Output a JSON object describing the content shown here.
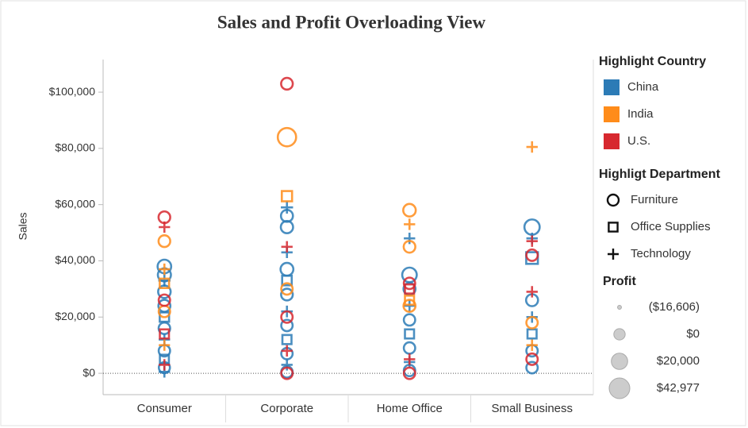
{
  "chart_data": {
    "type": "scatter",
    "title": "Sales and Profit Overloading View",
    "y_label": "Sales",
    "categories": [
      "Consumer",
      "Corporate",
      "Home Office",
      "Small Business"
    ],
    "ylim": [
      -7600,
      111600
    ],
    "yticks": [
      {
        "value": 0,
        "label": "$0"
      },
      {
        "value": 20000,
        "label": "$20,000"
      },
      {
        "value": 40000,
        "label": "$40,000"
      },
      {
        "value": 60000,
        "label": "$60,000"
      },
      {
        "value": 80000,
        "label": "$80,000"
      },
      {
        "value": 100000,
        "label": "$100,000"
      }
    ],
    "zero_line": true,
    "legend_title": "Highlight Country",
    "shape_legend_title": "Highligt Department",
    "departments": [
      "Furniture",
      "Office Supplies",
      "Technology"
    ],
    "department_shapes": [
      "circle",
      "square",
      "plus"
    ],
    "size_legend_title": "Profit",
    "size_legend": [
      {
        "value": -16606,
        "label": "($16,606)"
      },
      {
        "value": 0,
        "label": "$0"
      },
      {
        "value": 20000,
        "label": "$20,000"
      },
      {
        "value": 42977,
        "label": "$42,977"
      }
    ],
    "series": [
      {
        "name": "China",
        "color": "#2c7bb6",
        "x": [
          "Consumer",
          "Consumer",
          "Consumer",
          "Consumer",
          "Consumer",
          "Consumer",
          "Consumer",
          "Consumer",
          "Consumer",
          "Consumer",
          "Consumer",
          "Consumer",
          "Corporate",
          "Corporate",
          "Corporate",
          "Corporate",
          "Corporate",
          "Corporate",
          "Corporate",
          "Corporate",
          "Corporate",
          "Corporate",
          "Corporate",
          "Corporate",
          "Corporate",
          "Home Office",
          "Home Office",
          "Home Office",
          "Home Office",
          "Home Office",
          "Home Office",
          "Home Office",
          "Home Office",
          "Home Office",
          "Small Business",
          "Small Business",
          "Small Business",
          "Small Business",
          "Small Business",
          "Small Business",
          "Small Business",
          "Small Business"
        ],
        "department": [
          "Furniture",
          "Furniture",
          "Furniture",
          "Technology",
          "Furniture",
          "Office Supplies",
          "Furniture",
          "Technology",
          "Furniture",
          "Office Supplies",
          "Furniture",
          "Technology",
          "Technology",
          "Furniture",
          "Furniture",
          "Technology",
          "Furniture",
          "Office Supplies",
          "Furniture",
          "Technology",
          "Furniture",
          "Office Supplies",
          "Furniture",
          "Technology",
          "Furniture",
          "Technology",
          "Furniture",
          "Furniture",
          "Technology",
          "Furniture",
          "Office Supplies",
          "Furniture",
          "Technology",
          "Furniture",
          "Furniture",
          "Office Supplies",
          "Technology",
          "Furniture",
          "Technology",
          "Office Supplies",
          "Furniture",
          "Furniture"
        ],
        "values": [
          38000,
          35000,
          29000,
          33000,
          24000,
          20000,
          16000,
          12000,
          8000,
          5000,
          2000,
          500,
          59000,
          56000,
          52000,
          43000,
          37000,
          33000,
          28000,
          22000,
          17000,
          12000,
          7000,
          3000,
          500,
          48000,
          35000,
          30000,
          24000,
          19000,
          14000,
          9000,
          4000,
          1000,
          52000,
          41000,
          48000,
          26000,
          20000,
          14000,
          8000,
          2000
        ],
        "profit": [
          8000,
          6000,
          4000,
          3000,
          2000,
          1000,
          500,
          0,
          0,
          -500,
          -1000,
          0,
          3000,
          2000,
          3000,
          0,
          5000,
          2000,
          1000,
          1000,
          0,
          0,
          0,
          0,
          0,
          0,
          12000,
          2000,
          1000,
          0,
          0,
          0,
          0,
          0,
          15000,
          12000,
          0,
          2000,
          0,
          0,
          0,
          0
        ]
      },
      {
        "name": "India",
        "color": "#ff8c1a",
        "x": [
          "Consumer",
          "Consumer",
          "Consumer",
          "Consumer",
          "Consumer",
          "Corporate",
          "Corporate",
          "Corporate",
          "Home Office",
          "Home Office",
          "Home Office",
          "Home Office",
          "Home Office",
          "Small Business",
          "Small Business",
          "Small Business"
        ],
        "department": [
          "Furniture",
          "Technology",
          "Office Supplies",
          "Furniture",
          "Technology",
          "Furniture",
          "Office Supplies",
          "Furniture",
          "Furniture",
          "Technology",
          "Furniture",
          "Office Supplies",
          "Furniture",
          "Technology",
          "Furniture",
          "Technology"
        ],
        "values": [
          47000,
          37000,
          32000,
          22000,
          10000,
          84000,
          63000,
          30000,
          58000,
          53000,
          45000,
          26000,
          24000,
          80500,
          18000,
          10000
        ],
        "profit": [
          1000,
          0,
          1000,
          0,
          -500,
          30000,
          5000,
          0,
          4000,
          0,
          1000,
          0,
          2000,
          0,
          0,
          0
        ]
      },
      {
        "name": "U.S.",
        "color": "#d7282f",
        "x": [
          "Consumer",
          "Consumer",
          "Consumer",
          "Consumer",
          "Consumer",
          "Corporate",
          "Corporate",
          "Corporate",
          "Corporate",
          "Corporate",
          "Home Office",
          "Home Office",
          "Home Office",
          "Home Office",
          "Small Business",
          "Small Business",
          "Small Business",
          "Small Business"
        ],
        "department": [
          "Furniture",
          "Technology",
          "Furniture",
          "Office Supplies",
          "Technology",
          "Furniture",
          "Technology",
          "Furniture",
          "Technology",
          "Furniture",
          "Furniture",
          "Office Supplies",
          "Technology",
          "Furniture",
          "Furniture",
          "Technology",
          "Technology",
          "Furniture"
        ],
        "values": [
          55500,
          52000,
          26000,
          14000,
          3000,
          103000,
          45000,
          20000,
          8000,
          0,
          32000,
          30000,
          5000,
          0,
          42000,
          47000,
          29000,
          5000
        ],
        "profit": [
          1000,
          0,
          0,
          0,
          0,
          1000,
          0,
          0,
          0,
          0,
          0,
          0,
          0,
          0,
          0,
          0,
          0,
          0
        ]
      }
    ]
  }
}
